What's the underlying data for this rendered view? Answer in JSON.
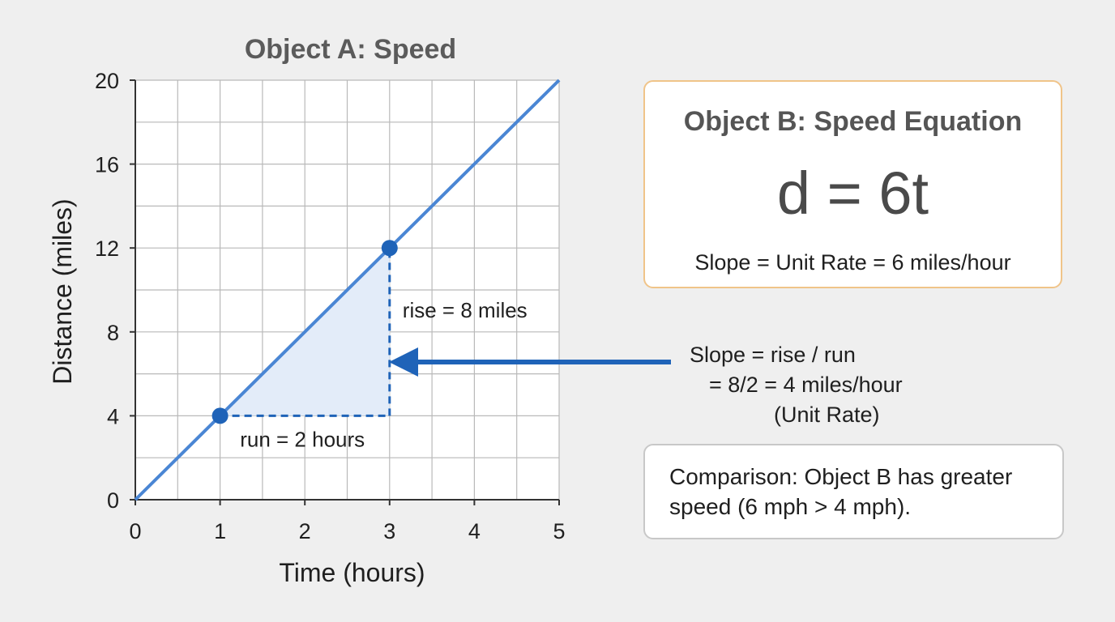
{
  "chart_data": {
    "type": "line",
    "title": "Object A: Speed",
    "xlabel": "Time (hours)",
    "ylabel": "Distance (miles)",
    "xlim": [
      0,
      5
    ],
    "ylim": [
      0,
      20
    ],
    "x_ticks": [
      0,
      1,
      2,
      3,
      4,
      5
    ],
    "y_ticks": [
      0,
      4,
      8,
      12,
      16,
      20
    ],
    "grid": true,
    "minor_grid": true,
    "series": [
      {
        "x": [
          0,
          5
        ],
        "y": [
          0,
          20
        ],
        "color": "#4a86d4"
      }
    ],
    "highlighted_points": [
      {
        "x": 1,
        "y": 4
      },
      {
        "x": 3,
        "y": 12
      }
    ],
    "annotations": {
      "run_label": "run = 2 hours",
      "rise_label": "rise = 8 miles"
    }
  },
  "equation_box": {
    "title": "Object B: Speed Equation",
    "formula": "d = 6t",
    "rate": "Slope = Unit Rate = 6 miles/hour"
  },
  "slope_note": {
    "line1": "Slope = rise / run",
    "line2": "= 8/2 = 4 miles/hour",
    "line3": "(Unit Rate)"
  },
  "comparison": {
    "text": "Comparison: Object B has greater speed (6 mph > 4 mph)."
  },
  "colors": {
    "line": "#4a86d4",
    "accent": "#1f63b8",
    "triangle_fill": "#e3ecf9",
    "equation_border": "#f0c489",
    "comparison_border": "#c8c8c8"
  }
}
